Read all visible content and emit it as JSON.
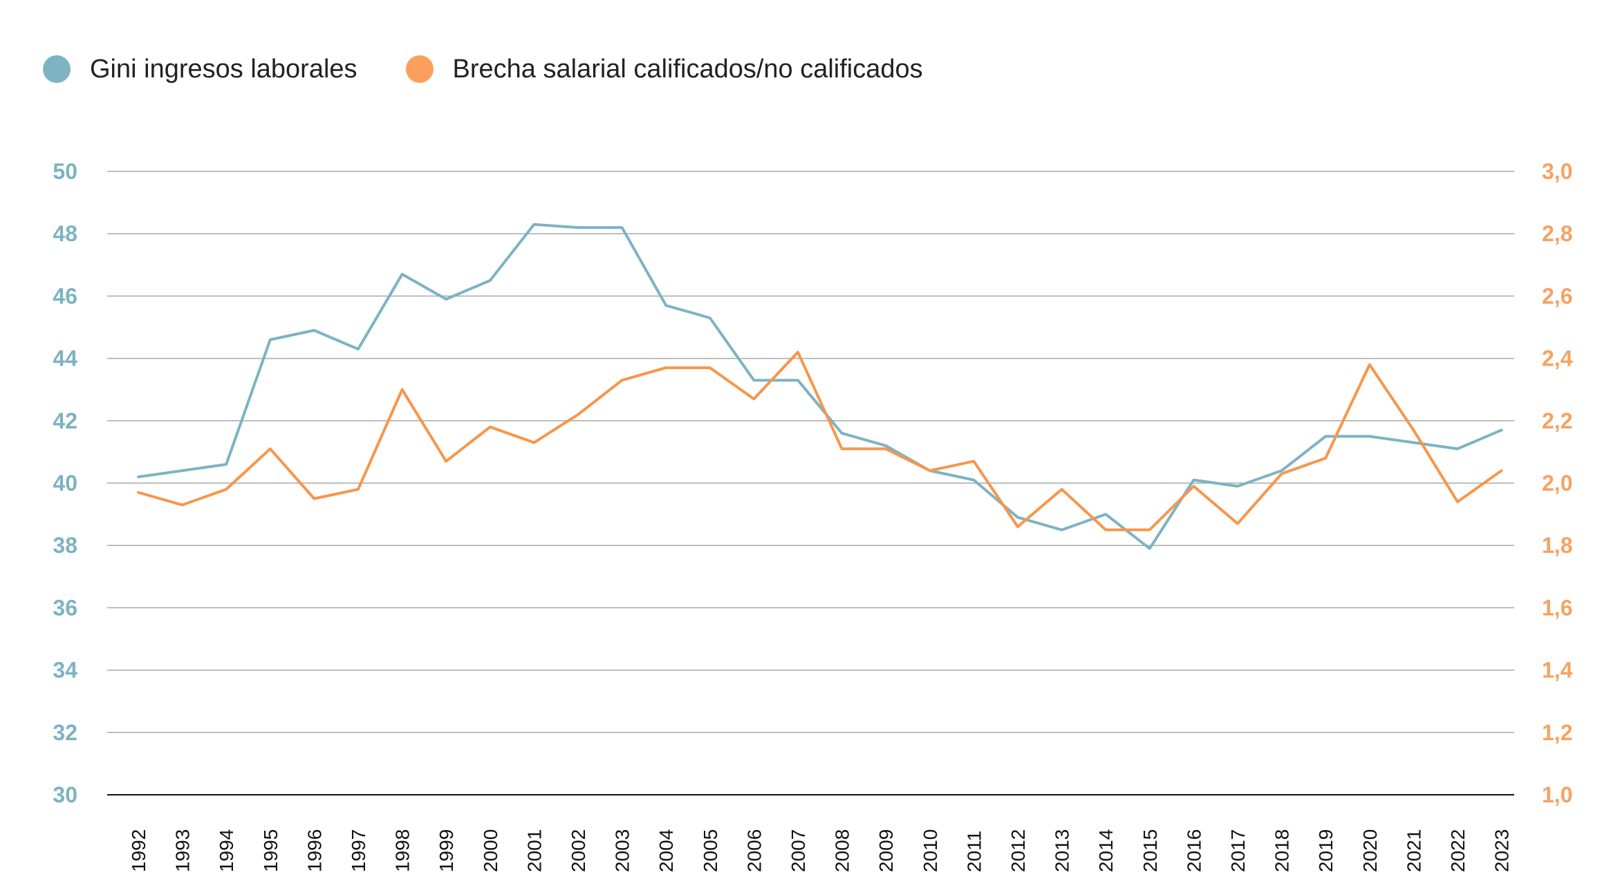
{
  "chart_data": {
    "type": "line",
    "title": "",
    "xlabel": "",
    "ylabel": "",
    "x": [
      "1992",
      "1993",
      "1994",
      "1995",
      "1996",
      "1997",
      "1998",
      "1999",
      "2000",
      "2001",
      "2002",
      "2003",
      "2004",
      "2005",
      "2006",
      "2007",
      "2008",
      "2009",
      "2010",
      "2011",
      "2012",
      "2013",
      "2014",
      "2015",
      "2016",
      "2017",
      "2018",
      "2019",
      "2020",
      "2021",
      "2022",
      "2023"
    ],
    "series": [
      {
        "name": "Gini ingresos laborales",
        "axis": "left",
        "color": "#7db3c3",
        "values": [
          40.2,
          40.4,
          40.6,
          44.6,
          44.9,
          44.3,
          46.7,
          45.9,
          46.5,
          48.3,
          48.2,
          48.2,
          45.7,
          45.3,
          43.3,
          43.3,
          41.6,
          41.2,
          40.4,
          40.1,
          38.9,
          38.5,
          39.0,
          37.9,
          40.1,
          39.9,
          40.4,
          41.5,
          41.5,
          41.3,
          41.1,
          41.7
        ]
      },
      {
        "name": "Brecha salarial calificados/no calificados",
        "axis": "right",
        "color": "#f7964a",
        "values": [
          1.97,
          1.93,
          1.98,
          2.11,
          1.95,
          1.98,
          2.3,
          2.07,
          2.18,
          2.13,
          2.22,
          2.33,
          2.37,
          2.37,
          2.27,
          2.42,
          2.11,
          2.11,
          2.04,
          2.07,
          1.86,
          1.98,
          1.85,
          1.85,
          1.99,
          1.87,
          2.03,
          2.08,
          2.38,
          2.17,
          1.94,
          2.04
        ]
      }
    ],
    "y_left": {
      "lim": [
        30,
        50
      ],
      "ticks": [
        "30",
        "32",
        "34",
        "36",
        "38",
        "40",
        "42",
        "44",
        "46",
        "48",
        "50"
      ]
    },
    "y_right": {
      "lim": [
        1.0,
        3.0
      ],
      "ticks": [
        "1,0",
        "1,2",
        "1,4",
        "1,6",
        "1,8",
        "2,0",
        "2,2",
        "2,4",
        "2,6",
        "2,8",
        "3,0"
      ]
    },
    "grid": true,
    "legend_position": "top-left"
  }
}
